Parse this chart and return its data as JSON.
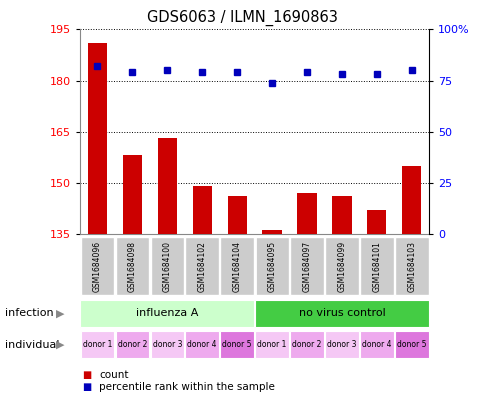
{
  "title": "GDS6063 / ILMN_1690863",
  "samples": [
    "GSM1684096",
    "GSM1684098",
    "GSM1684100",
    "GSM1684102",
    "GSM1684104",
    "GSM1684095",
    "GSM1684097",
    "GSM1684099",
    "GSM1684101",
    "GSM1684103"
  ],
  "counts": [
    191,
    158,
    163,
    149,
    146,
    136,
    147,
    146,
    142,
    155
  ],
  "percentiles": [
    82,
    79,
    80,
    79,
    79,
    74,
    79,
    78,
    78,
    80
  ],
  "ylim_left": [
    135,
    195
  ],
  "yticks_left": [
    135,
    150,
    165,
    180,
    195
  ],
  "ylim_right": [
    0,
    100
  ],
  "yticks_right": [
    0,
    25,
    50,
    75,
    100
  ],
  "ytick_labels_right": [
    "0",
    "25",
    "50",
    "75",
    "100%"
  ],
  "bar_color": "#cc0000",
  "dot_color": "#0000bb",
  "infection_groups": [
    {
      "label": "influenza A",
      "start": 0,
      "end": 5,
      "color": "#ccffcc"
    },
    {
      "label": "no virus control",
      "start": 5,
      "end": 10,
      "color": "#44cc44"
    }
  ],
  "individual_labels": [
    "donor 1",
    "donor 2",
    "donor 3",
    "donor 4",
    "donor 5",
    "donor 1",
    "donor 2",
    "donor 3",
    "donor 4",
    "donor 5"
  ],
  "ind_colors": [
    "#f5c8f5",
    "#eeaaee",
    "#f5c8f5",
    "#eeaaee",
    "#dd77dd",
    "#f5c8f5",
    "#eeaaee",
    "#f5c8f5",
    "#eeaaee",
    "#dd77dd"
  ],
  "infection_label": "infection",
  "individual_label": "individual",
  "legend_count_label": "count",
  "legend_percentile_label": "percentile rank within the sample",
  "background_color": "#ffffff",
  "sample_box_color": "#cccccc",
  "border_color": "#aaaaaa"
}
